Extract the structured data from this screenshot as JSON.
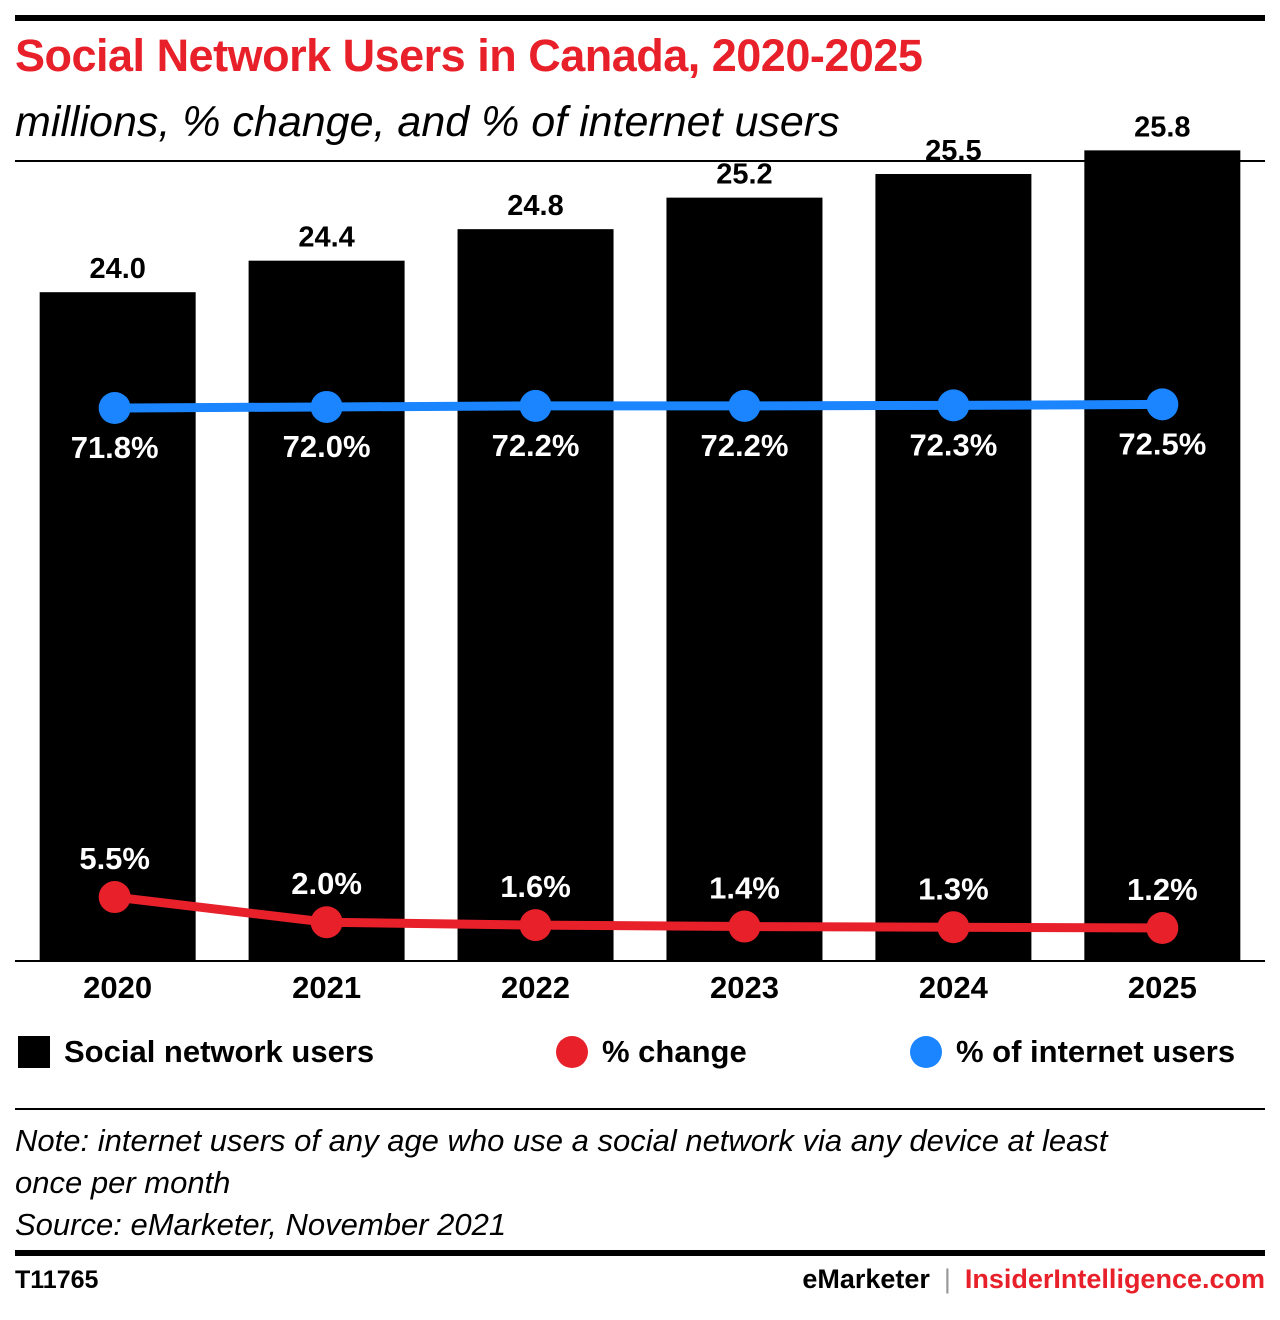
{
  "header": {
    "title": "Social Network Users in Canada, 2020-2025",
    "subtitle": "millions, % change, and % of internet users"
  },
  "legend": {
    "users": "Social network users",
    "change": "% change",
    "internet": "% of internet users"
  },
  "footer": {
    "note_line1": "Note: internet users of any age who use a social network via any device at least",
    "note_line2": "once per month",
    "source": "Source: eMarketer, November 2021",
    "chart_id": "T11765",
    "brand1": "eMarketer",
    "separator": "|",
    "brand2": "InsiderIntelligence.com"
  },
  "colors": {
    "title": "#e8202a",
    "bars": "#000000",
    "change_line": "#e8202a",
    "internet_line": "#1a85ff",
    "brand2": "#e8202a"
  },
  "chart_data": {
    "type": "bar",
    "categories": [
      "2020",
      "2021",
      "2022",
      "2023",
      "2024",
      "2025"
    ],
    "series": [
      {
        "name": "Social network users",
        "type": "bar",
        "values": [
          24.0,
          24.4,
          24.8,
          25.2,
          25.5,
          25.8
        ],
        "labels": [
          "24.0",
          "24.4",
          "24.8",
          "25.2",
          "25.5",
          "25.8"
        ]
      },
      {
        "name": "% change",
        "type": "line",
        "values": [
          5.5,
          2.0,
          1.6,
          1.4,
          1.3,
          1.2
        ],
        "labels": [
          "5.5%",
          "2.0%",
          "1.6%",
          "1.4%",
          "1.3%",
          "1.2%"
        ]
      },
      {
        "name": "% of internet users",
        "type": "line",
        "values": [
          71.8,
          72.0,
          72.2,
          72.2,
          72.3,
          72.5
        ],
        "labels": [
          "71.8%",
          "72.0%",
          "72.2%",
          "72.2%",
          "72.3%",
          "72.5%"
        ]
      }
    ],
    "legend_position": "bottom",
    "grid": false
  }
}
